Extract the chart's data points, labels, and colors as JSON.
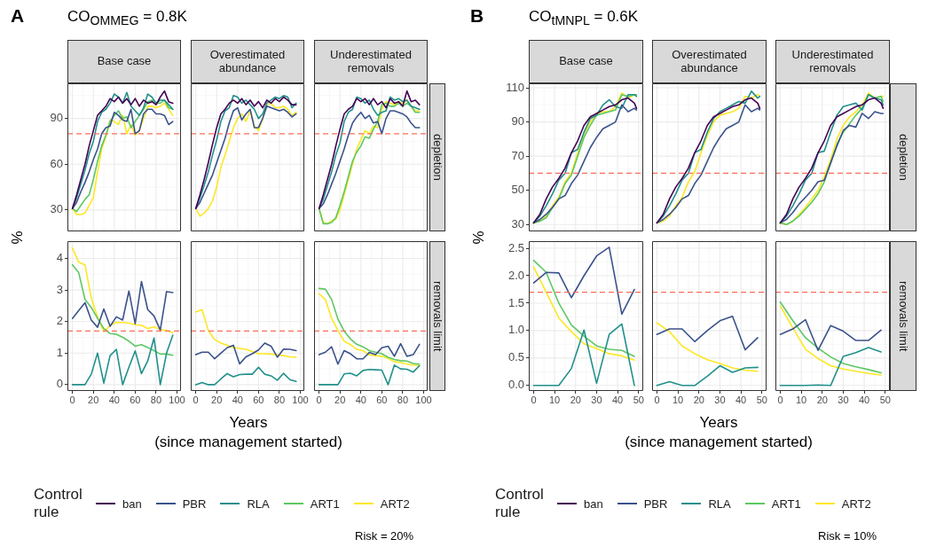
{
  "chart_data": [
    {
      "type": "line",
      "title": "Base case",
      "ylabel": "%",
      "legend": "bottom",
      "legend_title": "Control rule",
      "annotations": [
        "A",
        "CO$_{OMMEG}$ = 0.8K",
        "Risk = 20%"
      ],
      "x": [
        0,
        4,
        8,
        12,
        16,
        20,
        24,
        28,
        32,
        36,
        40,
        44,
        48,
        52,
        56,
        60,
        64,
        68,
        72,
        76,
        80,
        84,
        88,
        92,
        96
      ],
      "series": [
        {
          "name": "ban",
          "color": "#440154",
          "values": [
            31,
            40,
            50,
            60,
            72,
            82,
            92,
            95,
            98,
            103,
            101,
            104,
            100,
            103,
            99,
            103,
            98,
            102,
            100,
            101,
            99,
            104,
            108,
            101,
            100
          ]
        },
        {
          "name": "PBR",
          "color": "#3b528b",
          "values": [
            31,
            35,
            42,
            48,
            55,
            63,
            70,
            80,
            84,
            85,
            94,
            92,
            89,
            88,
            96,
            80,
            82,
            93,
            96,
            96,
            93,
            93,
            92,
            86,
            88
          ]
        },
        {
          "name": "RLA",
          "color": "#21908c",
          "values": [
            31,
            38,
            47,
            56,
            67,
            75,
            88,
            94,
            96,
            100,
            106,
            104,
            100,
            107,
            98,
            95,
            92,
            97,
            106,
            104,
            100,
            102,
            102,
            99,
            96
          ]
        },
        {
          "name": "ART1",
          "color": "#5dc863",
          "values": [
            31,
            29,
            33,
            37,
            40,
            50,
            62,
            72,
            79,
            88,
            92,
            95,
            90,
            91,
            84,
            88,
            92,
            96,
            101,
            102,
            100,
            100,
            102,
            97,
            96
          ]
        },
        {
          "name": "ART2",
          "color": "#fde725",
          "values": [
            31,
            27,
            27,
            28,
            33,
            38,
            55,
            70,
            78,
            89,
            88,
            86,
            92,
            80,
            86,
            79,
            82,
            90,
            98,
            98,
            97,
            98,
            100,
            96,
            92
          ]
        }
      ],
      "xlim": [
        -4.8,
        103.8
      ],
      "xticks": [
        0,
        20,
        40,
        60,
        80,
        100
      ],
      "ylim": [
        16,
        113
      ],
      "yticks": [
        30,
        60,
        90
      ],
      "grid": true,
      "ref_lines": [
        {
          "axis": "y",
          "value": 80,
          "color": "#fa6e59",
          "line_style": "dashed"
        }
      ],
      "tick_labels": "y"
    },
    {
      "type": "line",
      "title": "Overestimated abundance",
      "x": [
        0,
        4,
        8,
        12,
        16,
        20,
        24,
        28,
        32,
        36,
        40,
        44,
        48,
        52,
        56,
        60,
        64,
        68,
        72,
        76,
        80,
        84,
        88,
        92,
        96
      ],
      "series": [
        {
          "color": "#440154",
          "values": [
            31,
            40,
            50,
            61,
            73,
            84,
            93,
            96,
            100,
            102,
            100,
            103,
            99,
            102,
            98,
            101,
            97,
            102,
            100,
            103,
            101,
            104,
            102,
            99,
            99
          ]
        },
        {
          "color": "#3b528b",
          "values": [
            31,
            35,
            41,
            47,
            53,
            61,
            69,
            77,
            87,
            95,
            97,
            89,
            93,
            96,
            84,
            84,
            90,
            98,
            97,
            96,
            95,
            96,
            94,
            91,
            93
          ]
        },
        {
          "color": "#21908c",
          "values": [
            31,
            38,
            46,
            55,
            66,
            76,
            88,
            95,
            97,
            105,
            104,
            100,
            102,
            99,
            96,
            90,
            93,
            100,
            102,
            104,
            103,
            105,
            104,
            97,
            100
          ]
        },
        {
          "color": "#fde725",
          "values": [
            31,
            26,
            28,
            31,
            36,
            45,
            58,
            66,
            75,
            84,
            90,
            93,
            88,
            95,
            85,
            82,
            90,
            99,
            100,
            97,
            97,
            98,
            96,
            92,
            94
          ]
        }
      ],
      "xlim": [
        -4.8,
        103.8
      ],
      "xticks": [
        0,
        20,
        40,
        60,
        80,
        100
      ],
      "ylim": [
        16,
        113
      ],
      "yticks": [
        30,
        60,
        90
      ],
      "grid": true,
      "ref_lines": [
        {
          "axis": "y",
          "value": 80,
          "color": "#fa6e59",
          "line_style": "dashed"
        }
      ],
      "tick_labels": false
    },
    {
      "type": "line",
      "title": "Underestimated removals",
      "annotations": [
        "depletion"
      ],
      "x": [
        0,
        4,
        8,
        12,
        16,
        20,
        24,
        28,
        32,
        36,
        40,
        44,
        48,
        52,
        56,
        60,
        64,
        68,
        72,
        76,
        80,
        84,
        88,
        92,
        96
      ],
      "series": [
        {
          "color": "#440154",
          "values": [
            31,
            40,
            50,
            60,
            72,
            83,
            93,
            96,
            98,
            103,
            101,
            103,
            99,
            103,
            99,
            101,
            97,
            103,
            100,
            101,
            98,
            108,
            101,
            102,
            99
          ]
        },
        {
          "color": "#3b528b",
          "values": [
            31,
            34,
            40,
            47,
            54,
            62,
            70,
            79,
            87,
            91,
            94,
            90,
            92,
            87,
            88,
            80,
            90,
            95,
            95,
            94,
            93,
            91,
            87,
            84,
            84
          ]
        },
        {
          "color": "#21908c",
          "values": [
            31,
            37,
            46,
            55,
            66,
            74,
            88,
            94,
            96,
            104,
            103,
            100,
            102,
            96,
            92,
            94,
            95,
            104,
            102,
            103,
            101,
            102,
            98,
            97,
            96
          ]
        },
        {
          "color": "#5dc863",
          "values": [
            31,
            21,
            21,
            22,
            25,
            33,
            42,
            52,
            62,
            68,
            72,
            78,
            77,
            83,
            88,
            99,
            100,
            98,
            98,
            100,
            98,
            100,
            98,
            94,
            94
          ]
        },
        {
          "color": "#fde725",
          "values": [
            31,
            22,
            21,
            23,
            24,
            30,
            40,
            50,
            60,
            70,
            76,
            82,
            80,
            85,
            84,
            96,
            101,
            100,
            99,
            101,
            100,
            102,
            98,
            95,
            95
          ]
        }
      ],
      "xlim": [
        -4.8,
        103.8
      ],
      "xticks": [
        0,
        20,
        40,
        60,
        80,
        100
      ],
      "ylim": [
        16,
        113
      ],
      "yticks": [
        30,
        60,
        90
      ],
      "grid": true,
      "ref_lines": [
        {
          "axis": "y",
          "value": 80,
          "color": "#fa6e59",
          "line_style": "dashed"
        }
      ],
      "tick_labels": false
    },
    {
      "type": "line",
      "x": [
        0,
        6,
        12,
        18,
        24,
        30,
        36,
        42,
        48,
        54,
        60,
        66,
        72,
        78,
        84,
        90,
        96
      ],
      "series": [
        {
          "color": "#3b528b",
          "values": [
            2.1,
            2.35,
            2.6,
            2.05,
            1.82,
            2.4,
            1.85,
            2.15,
            2.05,
            2.97,
            1.93,
            3.27,
            2.38,
            2.18,
            1.73,
            2.95,
            2.92
          ]
        },
        {
          "color": "#21908c",
          "values": [
            0,
            0,
            0,
            0.33,
            1,
            0.05,
            0.92,
            1.12,
            0,
            0.55,
            1.07,
            0.35,
            0.75,
            1.48,
            0,
            1,
            1.57
          ]
        },
        {
          "color": "#5dc863",
          "values": [
            3.8,
            3.55,
            2.7,
            2.45,
            2.1,
            1.78,
            1.62,
            1.6,
            1.5,
            1.38,
            1.22,
            1.27,
            1.18,
            1.08,
            0.97,
            0.97,
            0.93
          ]
        },
        {
          "color": "#fde725",
          "values": [
            4.33,
            3.88,
            3.8,
            2.75,
            2.15,
            1.68,
            1.88,
            1.98,
            1.97,
            1.95,
            1.9,
            1.88,
            1.78,
            1.83,
            1.75,
            1.72,
            1.65
          ]
        }
      ],
      "xlim": [
        -4.8,
        103.8
      ],
      "xticks": [
        0,
        20,
        40,
        60,
        80,
        100
      ],
      "ylim": [
        -0.2,
        4.55
      ],
      "yticks": [
        0,
        1,
        2,
        3,
        4
      ],
      "grid": true,
      "ref_lines": [
        {
          "axis": "y",
          "value": 1.7,
          "color": "#fa6e59",
          "line_style": "dashed"
        }
      ]
    },
    {
      "type": "line",
      "xlabel": "Years\n(since management started)",
      "x": [
        0,
        6,
        12,
        18,
        24,
        30,
        36,
        42,
        48,
        54,
        60,
        66,
        72,
        78,
        84,
        90,
        96
      ],
      "series": [
        {
          "color": "#3b528b",
          "values": [
            0.95,
            1.03,
            1.03,
            0.82,
            1,
            1.17,
            1.25,
            0.66,
            0.88,
            0.98,
            1.1,
            1.32,
            1.22,
            0.87,
            1.13,
            1.12,
            1.08
          ]
        },
        {
          "color": "#21908c",
          "values": [
            0,
            0.07,
            0,
            0,
            0.18,
            0.35,
            0.25,
            0.32,
            0.33,
            0.33,
            0.55,
            0.33,
            0.28,
            0.14,
            0.36,
            0.16,
            0.1
          ]
        },
        {
          "color": "#fde725",
          "values": [
            2.3,
            2.38,
            1.72,
            1.43,
            1.32,
            1.25,
            1.18,
            1.15,
            1.12,
            1.05,
            0.98,
            0.98,
            0.97,
            0.95,
            0.92,
            0.88,
            0.87
          ]
        }
      ],
      "xlim": [
        -4.8,
        103.8
      ],
      "xticks": [
        0,
        20,
        40,
        60,
        80,
        100
      ],
      "ylim": [
        -0.2,
        4.55
      ],
      "yticks": [
        0,
        1,
        2,
        3,
        4
      ],
      "grid": true,
      "ref_lines": [
        {
          "axis": "y",
          "value": 1.7,
          "color": "#fa6e59",
          "line_style": "dashed"
        }
      ],
      "tick_labels": "x"
    },
    {
      "type": "line",
      "annotations": [
        "removals limit"
      ],
      "x": [
        0,
        6,
        12,
        18,
        24,
        30,
        36,
        42,
        48,
        54,
        60,
        66,
        72,
        78,
        84,
        90,
        96
      ],
      "series": [
        {
          "color": "#3b528b",
          "values": [
            0.95,
            1.03,
            1.2,
            0.65,
            1.08,
            0.98,
            0.82,
            0.82,
            1.02,
            0.95,
            1.17,
            1.22,
            0.9,
            1.3,
            0.9,
            0.95,
            1.28
          ]
        },
        {
          "color": "#21908c",
          "values": [
            0,
            0,
            0,
            0,
            0.34,
            0.36,
            0.28,
            0.45,
            0.48,
            0.47,
            0.46,
            0,
            0.62,
            0.5,
            0.49,
            0.4,
            0.6
          ]
        },
        {
          "color": "#5dc863",
          "values": [
            3.05,
            3.03,
            2.7,
            2.08,
            1.7,
            1.45,
            1.28,
            1.2,
            1.08,
            1.03,
            0.98,
            0.87,
            0.8,
            0.76,
            0.75,
            0.67,
            0.65
          ]
        },
        {
          "color": "#fde725",
          "values": [
            2.88,
            2.7,
            2.1,
            1.72,
            1.38,
            1.27,
            1.12,
            1.08,
            0.95,
            0.92,
            0.9,
            0.83,
            0.73,
            0.7,
            0.65,
            0.62,
            0.6
          ]
        }
      ],
      "xlim": [
        -4.8,
        103.8
      ],
      "xticks": [
        0,
        20,
        40,
        60,
        80,
        100
      ],
      "ylim": [
        -0.2,
        4.55
      ],
      "yticks": [
        0,
        1,
        2,
        3,
        4
      ],
      "grid": true,
      "ref_lines": [
        {
          "axis": "y",
          "value": 1.7,
          "color": "#fa6e59",
          "line_style": "dashed"
        }
      ],
      "tick_labels": "x"
    },
    {
      "type": "line",
      "title": "Base case",
      "ylabel": "%",
      "legend": "bottom",
      "legend_title": "Control rule",
      "annotations": [
        "B",
        "CO$_{tMNPL}$ = 0.6K",
        "Risk = 10%"
      ],
      "x": [
        0,
        3,
        6,
        9,
        12,
        15,
        18,
        21,
        24,
        27,
        30,
        33,
        36,
        39,
        42,
        45,
        48,
        49
      ],
      "series": [
        {
          "name": "ban",
          "color": "#440154",
          "values": [
            31,
            36,
            45,
            52,
            57,
            63,
            72,
            79,
            88,
            93,
            95,
            97,
            99,
            100,
            103,
            104,
            101,
            98
          ]
        },
        {
          "name": "PBR",
          "color": "#3b528b",
          "values": [
            31,
            33,
            36,
            40,
            45,
            47,
            54,
            59,
            67,
            75,
            81,
            86,
            88,
            90,
            100,
            96,
            98,
            97
          ]
        },
        {
          "name": "RLA",
          "color": "#21908c",
          "values": [
            31,
            35,
            41,
            48,
            56,
            60,
            72,
            74,
            84,
            92,
            94,
            100,
            103,
            99,
            98,
            106,
            106,
            105
          ]
        },
        {
          "name": "ART1",
          "color": "#5dc863",
          "values": [
            31,
            32,
            34,
            40,
            45,
            54,
            59,
            70,
            81,
            88,
            94,
            95,
            96,
            97,
            106,
            105,
            106,
            106
          ]
        },
        {
          "name": "ART2",
          "color": "#fde725",
          "values": [
            31,
            32,
            35,
            41,
            46,
            55,
            60,
            72,
            83,
            90,
            95,
            96,
            96,
            99,
            107,
            104,
            106,
            105
          ]
        }
      ],
      "xlim": [
        -2.3,
        52.2
      ],
      "xticks": [
        0,
        10,
        20,
        30,
        40,
        50
      ],
      "ylim": [
        26,
        112.6
      ],
      "yticks": [
        30,
        50,
        70,
        90,
        110
      ],
      "grid": true,
      "ref_lines": [
        {
          "axis": "y",
          "value": 60,
          "color": "#fa6e59",
          "line_style": "dashed"
        }
      ],
      "tick_labels": "y"
    },
    {
      "type": "line",
      "title": "Overestimated abundance",
      "x": [
        0,
        3,
        6,
        9,
        12,
        15,
        18,
        21,
        24,
        27,
        30,
        33,
        36,
        39,
        42,
        45,
        48,
        49
      ],
      "series": [
        {
          "color": "#440154",
          "values": [
            31,
            36,
            45,
            52,
            57,
            63,
            72,
            79,
            88,
            93,
            95,
            97,
            99,
            100,
            103,
            104,
            101,
            98
          ]
        },
        {
          "color": "#3b528b",
          "values": [
            31,
            33,
            36,
            40,
            45,
            47,
            54,
            59,
            67,
            75,
            81,
            86,
            88,
            90,
            100,
            96,
            98,
            97
          ]
        },
        {
          "color": "#21908c",
          "values": [
            31,
            35,
            41,
            48,
            56,
            60,
            72,
            74,
            84,
            92,
            96,
            98,
            100,
            102,
            101,
            108,
            104,
            105
          ]
        },
        {
          "color": "#fde725",
          "values": [
            31,
            32,
            35,
            41,
            46,
            55,
            61,
            72,
            82,
            90,
            94,
            95,
            96,
            98,
            105,
            104,
            106,
            105
          ]
        }
      ],
      "xlim": [
        -2.3,
        52.2
      ],
      "xticks": [
        0,
        10,
        20,
        30,
        40,
        50
      ],
      "ylim": [
        26,
        112.6
      ],
      "yticks": [
        30,
        50,
        70,
        90,
        110
      ],
      "grid": true,
      "ref_lines": [
        {
          "axis": "y",
          "value": 60,
          "color": "#fa6e59",
          "line_style": "dashed"
        }
      ],
      "tick_labels": false
    },
    {
      "type": "line",
      "title": "Underestimated removals",
      "annotations": [
        "depletion"
      ],
      "x": [
        0,
        3,
        6,
        9,
        12,
        15,
        18,
        21,
        24,
        27,
        30,
        33,
        36,
        39,
        42,
        45,
        48,
        49
      ],
      "series": [
        {
          "color": "#440154",
          "values": [
            31,
            36,
            45,
            52,
            57,
            63,
            72,
            79,
            88,
            93,
            95,
            97,
            99,
            100,
            103,
            104,
            101,
            98
          ]
        },
        {
          "color": "#3b528b",
          "values": [
            31,
            33,
            37,
            42,
            46,
            50,
            55,
            56,
            66,
            76,
            85,
            88,
            87,
            95,
            92,
            96,
            95,
            95
          ]
        },
        {
          "color": "#21908c",
          "values": [
            31,
            35,
            41,
            48,
            56,
            60,
            72,
            73,
            84,
            94,
            99,
            100,
            101,
            97,
            106,
            104,
            103,
            100
          ]
        },
        {
          "color": "#5dc863",
          "values": [
            31,
            30,
            32,
            35,
            39,
            43,
            48,
            55,
            66,
            77,
            84,
            89,
            94,
            98,
            106,
            104,
            105,
            102
          ]
        },
        {
          "color": "#fde725",
          "values": [
            31,
            30,
            32,
            36,
            40,
            45,
            50,
            58,
            68,
            80,
            88,
            93,
            96,
            100,
            107,
            104,
            105,
            105
          ]
        }
      ],
      "xlim": [
        -2.3,
        52.2
      ],
      "xticks": [
        0,
        10,
        20,
        30,
        40,
        50
      ],
      "ylim": [
        26,
        112.6
      ],
      "yticks": [
        30,
        50,
        70,
        90,
        110
      ],
      "grid": true,
      "ref_lines": [
        {
          "axis": "y",
          "value": 60,
          "color": "#fa6e59",
          "line_style": "dashed"
        }
      ],
      "tick_labels": false
    },
    {
      "type": "line",
      "x": [
        0,
        6,
        12,
        18,
        24,
        30,
        36,
        42,
        48
      ],
      "series": [
        {
          "color": "#3b528b",
          "values": [
            1.87,
            2.06,
            2.05,
            1.6,
            2,
            2.36,
            2.52,
            1.3,
            1.75
          ]
        },
        {
          "color": "#21908c",
          "values": [
            0,
            0,
            0,
            0.31,
            1.01,
            0.04,
            0.93,
            1.12,
            0
          ]
        },
        {
          "color": "#5dc863",
          "values": [
            2.28,
            2.06,
            1.5,
            1.1,
            0.9,
            0.72,
            0.66,
            0.64,
            0.53
          ]
        },
        {
          "color": "#fde725",
          "values": [
            2.16,
            1.7,
            1.23,
            0.98,
            0.76,
            0.67,
            0.58,
            0.54,
            0.46
          ]
        }
      ],
      "xlim": [
        -2.3,
        52.2
      ],
      "xticks": [
        0,
        10,
        20,
        30,
        40,
        50
      ],
      "ylim": [
        -0.1,
        2.63
      ],
      "yticks": [
        {
          "value": 0,
          "label": "0.0"
        },
        {
          "value": 0.5,
          "label": "0.5"
        },
        {
          "value": 1,
          "label": "1.0"
        },
        {
          "value": 1.5,
          "label": "1.5"
        },
        {
          "value": 2,
          "label": "2.0"
        },
        {
          "value": 2.5,
          "label": "2.5"
        }
      ],
      "grid": true,
      "ref_lines": [
        {
          "axis": "y",
          "value": 1.7,
          "color": "#fa6e59",
          "line_style": "dashed"
        }
      ]
    },
    {
      "type": "line",
      "xlabel": "Years\n(since management started)",
      "x": [
        0,
        6,
        12,
        18,
        24,
        30,
        36,
        42,
        48
      ],
      "series": [
        {
          "color": "#3b528b",
          "values": [
            0.93,
            1.03,
            1.03,
            0.8,
            1,
            1.18,
            1.26,
            0.65,
            0.87
          ]
        },
        {
          "color": "#21908c",
          "values": [
            0,
            0.07,
            0,
            0,
            0.17,
            0.36,
            0.24,
            0.32,
            0.33
          ]
        },
        {
          "color": "#fde725",
          "values": [
            1.14,
            0.98,
            0.72,
            0.58,
            0.47,
            0.4,
            0.32,
            0.28,
            0.26
          ]
        }
      ],
      "xlim": [
        -2.3,
        52.2
      ],
      "xticks": [
        0,
        10,
        20,
        30,
        40,
        50
      ],
      "ylim": [
        -0.1,
        2.63
      ],
      "yticks": [
        0,
        0.5,
        1,
        1.5,
        2,
        2.5
      ],
      "grid": true,
      "ref_lines": [
        {
          "axis": "y",
          "value": 1.7,
          "color": "#fa6e59",
          "line_style": "dashed"
        }
      ],
      "tick_labels": "x"
    },
    {
      "type": "line",
      "annotations": [
        "removals limit"
      ],
      "x": [
        0,
        6,
        12,
        18,
        24,
        30,
        36,
        42,
        48
      ],
      "series": [
        {
          "color": "#3b528b",
          "values": [
            0.93,
            1.03,
            1.2,
            0.64,
            1.09,
            0.99,
            0.82,
            0.82,
            1.01
          ]
        },
        {
          "color": "#21908c",
          "values": [
            0,
            0,
            0,
            0.01,
            0,
            0.53,
            0.6,
            0.69,
            0.61
          ]
        },
        {
          "color": "#5dc863",
          "values": [
            1.52,
            1.18,
            0.87,
            0.68,
            0.52,
            0.4,
            0.34,
            0.29,
            0.23
          ]
        },
        {
          "color": "#fde725",
          "values": [
            1.45,
            1.05,
            0.66,
            0.49,
            0.36,
            0.3,
            0.26,
            0.22,
            0.19
          ]
        }
      ],
      "xlim": [
        -2.3,
        52.2
      ],
      "xticks": [
        0,
        10,
        20,
        30,
        40,
        50
      ],
      "ylim": [
        -0.1,
        2.63
      ],
      "yticks": [
        0,
        0.5,
        1,
        1.5,
        2,
        2.5
      ],
      "grid": true,
      "ref_lines": [
        {
          "axis": "y",
          "value": 1.7,
          "color": "#fa6e59",
          "line_style": "dashed"
        }
      ],
      "tick_labels": "x"
    }
  ]
}
